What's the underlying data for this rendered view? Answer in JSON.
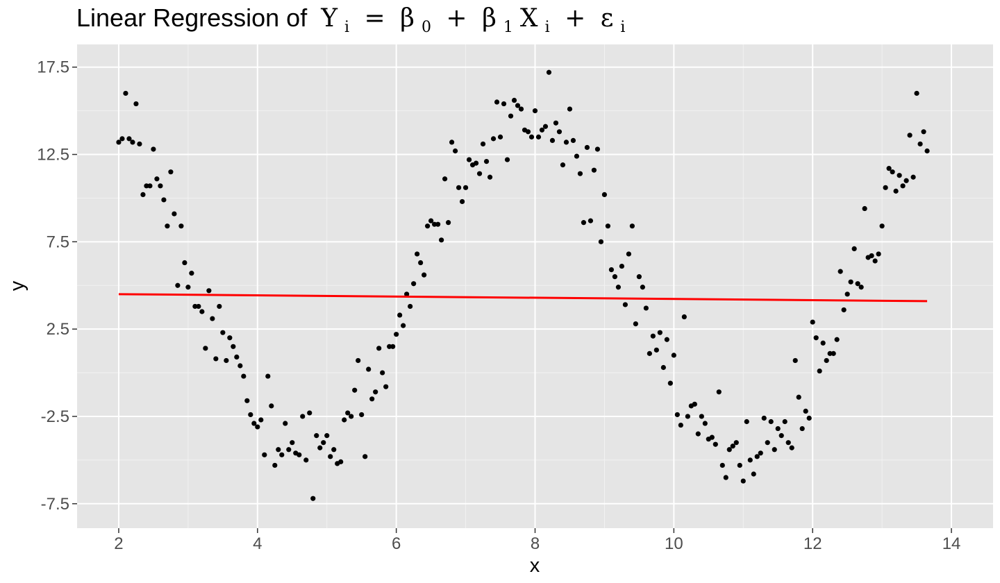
{
  "chart_data": {
    "type": "scatter",
    "title": {
      "prefix": "Linear Regression of ",
      "Y": "Y",
      "i": "i",
      "eq": " = ",
      "beta": "β",
      "zero": "0",
      "plus": " + ",
      "one": "1",
      "X": "X",
      "eps": "ε"
    },
    "xlabel": "x",
    "ylabel": "y",
    "xlim": [
      1.4,
      14.6
    ],
    "ylim": [
      -8.9,
      18.8
    ],
    "x_ticks": [
      2,
      4,
      6,
      8,
      10,
      12,
      14
    ],
    "x_tick_labels": [
      "2",
      "4",
      "6",
      "8",
      "10",
      "12",
      "14"
    ],
    "y_ticks": [
      -7.5,
      -2.5,
      2.5,
      7.5,
      12.5,
      17.5
    ],
    "y_tick_labels": [
      "-7.5",
      "-2.5",
      "2.5",
      "7.5",
      "12.5",
      "17.5"
    ],
    "grid": true,
    "background": "#e5e5e5",
    "point_color": "#000000",
    "fit_line": {
      "color": "#ff0000",
      "x": [
        2.0,
        13.65
      ],
      "y": [
        4.5,
        4.1
      ]
    },
    "series": [
      {
        "points": [
          [
            2.0,
            13.2
          ],
          [
            2.05,
            13.4
          ],
          [
            2.1,
            16.0
          ],
          [
            2.15,
            13.4
          ],
          [
            2.2,
            13.2
          ],
          [
            2.25,
            15.4
          ],
          [
            2.3,
            13.1
          ],
          [
            2.35,
            10.2
          ],
          [
            2.4,
            10.7
          ],
          [
            2.45,
            10.7
          ],
          [
            2.5,
            12.8
          ],
          [
            2.55,
            11.1
          ],
          [
            2.6,
            10.7
          ],
          [
            2.65,
            9.9
          ],
          [
            2.7,
            8.4
          ],
          [
            2.75,
            11.5
          ],
          [
            2.8,
            9.1
          ],
          [
            2.85,
            5.0
          ],
          [
            2.9,
            8.4
          ],
          [
            2.95,
            6.3
          ],
          [
            3.0,
            4.9
          ],
          [
            3.05,
            5.7
          ],
          [
            3.1,
            3.8
          ],
          [
            3.15,
            3.8
          ],
          [
            3.2,
            3.5
          ],
          [
            3.25,
            1.4
          ],
          [
            3.3,
            4.7
          ],
          [
            3.35,
            3.1
          ],
          [
            3.4,
            0.8
          ],
          [
            3.45,
            3.8
          ],
          [
            3.5,
            2.3
          ],
          [
            3.55,
            0.7
          ],
          [
            3.6,
            2.0
          ],
          [
            3.65,
            1.5
          ],
          [
            3.7,
            0.9
          ],
          [
            3.75,
            0.4
          ],
          [
            3.8,
            -0.2
          ],
          [
            3.85,
            -1.6
          ],
          [
            3.9,
            -2.4
          ],
          [
            3.95,
            -2.9
          ],
          [
            4.0,
            -3.1
          ],
          [
            4.05,
            -2.7
          ],
          [
            4.1,
            -4.7
          ],
          [
            4.15,
            -0.2
          ],
          [
            4.2,
            -1.9
          ],
          [
            4.25,
            -5.3
          ],
          [
            4.3,
            -4.4
          ],
          [
            4.35,
            -4.7
          ],
          [
            4.4,
            -2.9
          ],
          [
            4.45,
            -4.4
          ],
          [
            4.5,
            -4.0
          ],
          [
            4.55,
            -4.6
          ],
          [
            4.6,
            -4.7
          ],
          [
            4.65,
            -2.5
          ],
          [
            4.7,
            -5.0
          ],
          [
            4.75,
            -2.3
          ],
          [
            4.8,
            -7.2
          ],
          [
            4.85,
            -3.6
          ],
          [
            4.9,
            -4.3
          ],
          [
            4.95,
            -4.0
          ],
          [
            5.0,
            -3.6
          ],
          [
            5.05,
            -4.8
          ],
          [
            5.1,
            -4.4
          ],
          [
            5.15,
            -5.2
          ],
          [
            5.2,
            -5.1
          ],
          [
            5.25,
            -2.7
          ],
          [
            5.3,
            -2.3
          ],
          [
            5.35,
            -2.5
          ],
          [
            5.4,
            -1.0
          ],
          [
            5.45,
            0.7
          ],
          [
            5.5,
            -2.4
          ],
          [
            5.55,
            -4.8
          ],
          [
            5.6,
            0.2
          ],
          [
            5.65,
            -1.5
          ],
          [
            5.7,
            -1.1
          ],
          [
            5.75,
            1.4
          ],
          [
            5.8,
            0.0
          ],
          [
            5.85,
            -0.8
          ],
          [
            5.9,
            1.5
          ],
          [
            5.95,
            1.5
          ],
          [
            6.0,
            2.2
          ],
          [
            6.05,
            3.3
          ],
          [
            6.1,
            2.7
          ],
          [
            6.15,
            4.5
          ],
          [
            6.2,
            3.8
          ],
          [
            6.25,
            5.1
          ],
          [
            6.3,
            6.8
          ],
          [
            6.35,
            6.3
          ],
          [
            6.4,
            5.6
          ],
          [
            6.45,
            8.4
          ],
          [
            6.5,
            8.7
          ],
          [
            6.55,
            8.5
          ],
          [
            6.6,
            8.5
          ],
          [
            6.65,
            7.6
          ],
          [
            6.7,
            11.1
          ],
          [
            6.75,
            8.6
          ],
          [
            6.8,
            13.2
          ],
          [
            6.85,
            12.7
          ],
          [
            6.9,
            10.6
          ],
          [
            6.95,
            9.8
          ],
          [
            7.0,
            10.6
          ],
          [
            7.05,
            12.2
          ],
          [
            7.1,
            11.9
          ],
          [
            7.15,
            12.0
          ],
          [
            7.2,
            11.4
          ],
          [
            7.25,
            13.1
          ],
          [
            7.3,
            12.1
          ],
          [
            7.35,
            11.2
          ],
          [
            7.4,
            13.4
          ],
          [
            7.45,
            15.5
          ],
          [
            7.5,
            13.5
          ],
          [
            7.55,
            15.4
          ],
          [
            7.6,
            12.2
          ],
          [
            7.65,
            14.7
          ],
          [
            7.7,
            15.6
          ],
          [
            7.75,
            15.3
          ],
          [
            7.8,
            15.1
          ],
          [
            7.85,
            13.9
          ],
          [
            7.9,
            13.8
          ],
          [
            7.95,
            13.5
          ],
          [
            8.0,
            15.0
          ],
          [
            8.05,
            13.5
          ],
          [
            8.1,
            13.9
          ],
          [
            8.15,
            14.1
          ],
          [
            8.2,
            17.2
          ],
          [
            8.25,
            13.3
          ],
          [
            8.3,
            14.3
          ],
          [
            8.35,
            13.8
          ],
          [
            8.4,
            11.9
          ],
          [
            8.45,
            13.2
          ],
          [
            8.5,
            15.1
          ],
          [
            8.55,
            13.3
          ],
          [
            8.6,
            12.4
          ],
          [
            8.65,
            11.4
          ],
          [
            8.7,
            8.6
          ],
          [
            8.75,
            12.9
          ],
          [
            8.8,
            8.7
          ],
          [
            8.85,
            11.6
          ],
          [
            8.9,
            12.8
          ],
          [
            8.95,
            7.5
          ],
          [
            9.0,
            10.2
          ],
          [
            9.05,
            8.4
          ],
          [
            9.1,
            5.9
          ],
          [
            9.15,
            5.5
          ],
          [
            9.2,
            4.9
          ],
          [
            9.25,
            6.1
          ],
          [
            9.3,
            3.9
          ],
          [
            9.35,
            6.8
          ],
          [
            9.4,
            8.4
          ],
          [
            9.45,
            2.8
          ],
          [
            9.5,
            5.5
          ],
          [
            9.55,
            4.9
          ],
          [
            9.6,
            3.7
          ],
          [
            9.65,
            1.1
          ],
          [
            9.7,
            2.1
          ],
          [
            9.75,
            1.3
          ],
          [
            9.8,
            2.3
          ],
          [
            9.85,
            0.3
          ],
          [
            9.9,
            1.9
          ],
          [
            9.95,
            -0.6
          ],
          [
            10.0,
            1.0
          ],
          [
            10.05,
            -2.4
          ],
          [
            10.1,
            -3.0
          ],
          [
            10.15,
            3.2
          ],
          [
            10.2,
            -2.5
          ],
          [
            10.25,
            -1.9
          ],
          [
            10.3,
            -1.8
          ],
          [
            10.35,
            -3.5
          ],
          [
            10.4,
            -2.5
          ],
          [
            10.45,
            -2.9
          ],
          [
            10.5,
            -3.8
          ],
          [
            10.55,
            -3.7
          ],
          [
            10.6,
            -4.1
          ],
          [
            10.65,
            -1.1
          ],
          [
            10.7,
            -5.3
          ],
          [
            10.75,
            -6.0
          ],
          [
            10.8,
            -4.4
          ],
          [
            10.85,
            -4.2
          ],
          [
            10.9,
            -4.0
          ],
          [
            10.95,
            -5.3
          ],
          [
            11.0,
            -6.2
          ],
          [
            11.05,
            -2.8
          ],
          [
            11.1,
            -5.0
          ],
          [
            11.15,
            -5.8
          ],
          [
            11.2,
            -4.8
          ],
          [
            11.25,
            -4.6
          ],
          [
            11.3,
            -2.6
          ],
          [
            11.35,
            -4.0
          ],
          [
            11.4,
            -2.8
          ],
          [
            11.45,
            -4.4
          ],
          [
            11.5,
            -3.2
          ],
          [
            11.55,
            -3.6
          ],
          [
            11.6,
            -2.8
          ],
          [
            11.65,
            -4.0
          ],
          [
            11.7,
            -4.3
          ],
          [
            11.75,
            0.7
          ],
          [
            11.8,
            -1.4
          ],
          [
            11.85,
            -3.2
          ],
          [
            11.9,
            -2.2
          ],
          [
            11.95,
            -2.6
          ],
          [
            12.0,
            2.9
          ],
          [
            12.05,
            2.0
          ],
          [
            12.1,
            0.1
          ],
          [
            12.15,
            1.7
          ],
          [
            12.2,
            0.7
          ],
          [
            12.25,
            1.1
          ],
          [
            12.3,
            1.1
          ],
          [
            12.35,
            1.9
          ],
          [
            12.4,
            5.8
          ],
          [
            12.45,
            3.6
          ],
          [
            12.5,
            4.5
          ],
          [
            12.55,
            5.2
          ],
          [
            12.6,
            7.1
          ],
          [
            12.65,
            5.1
          ],
          [
            12.7,
            4.9
          ],
          [
            12.75,
            9.4
          ],
          [
            12.8,
            6.6
          ],
          [
            12.85,
            6.7
          ],
          [
            12.9,
            6.4
          ],
          [
            12.95,
            6.8
          ],
          [
            13.0,
            8.4
          ],
          [
            13.05,
            10.6
          ],
          [
            13.1,
            11.7
          ],
          [
            13.15,
            11.5
          ],
          [
            13.2,
            10.4
          ],
          [
            13.25,
            11.3
          ],
          [
            13.3,
            10.7
          ],
          [
            13.35,
            11.0
          ],
          [
            13.4,
            13.6
          ],
          [
            13.45,
            11.2
          ],
          [
            13.5,
            16.0
          ],
          [
            13.55,
            13.1
          ],
          [
            13.6,
            13.8
          ],
          [
            13.65,
            12.7
          ]
        ]
      }
    ]
  }
}
